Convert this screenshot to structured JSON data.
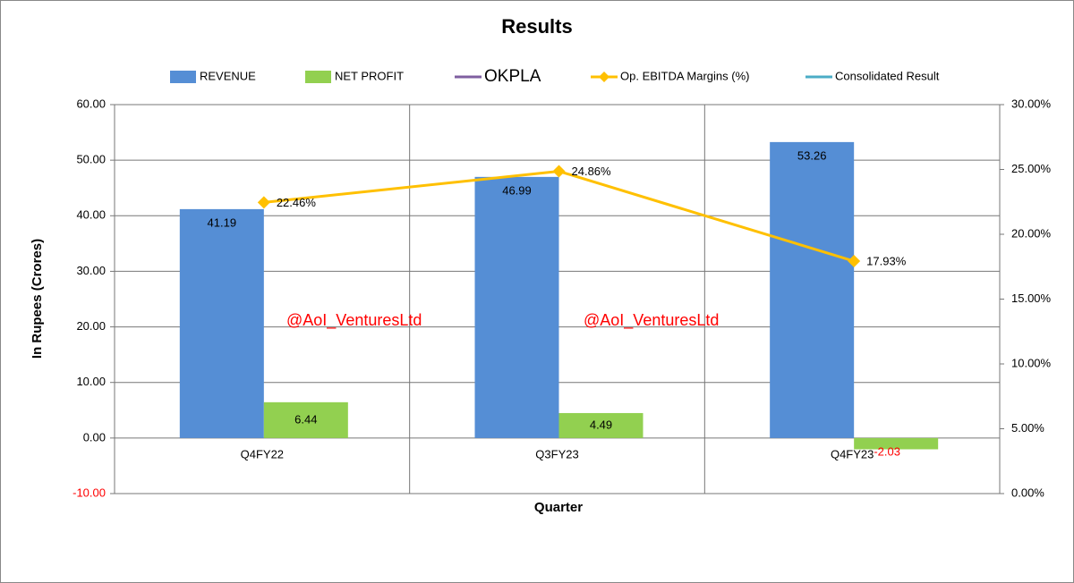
{
  "chart_data": {
    "type": "bar",
    "title": "Results",
    "categories": [
      "Q4FY22",
      "Q3FY23",
      "Q4FY23"
    ],
    "series": [
      {
        "name": "REVENUE",
        "type": "bar",
        "color": "#558ED5",
        "values": [
          41.19,
          46.99,
          53.26
        ]
      },
      {
        "name": "NET PROFIT",
        "type": "bar",
        "color": "#92D050",
        "values": [
          6.44,
          4.49,
          -2.03
        ]
      },
      {
        "name": "OKPLA",
        "type": "line",
        "color": "#7F5FA0",
        "values": [
          null,
          null,
          null
        ]
      },
      {
        "name": "Op. EBITDA Margins (%)",
        "type": "line",
        "color": "#FFC000",
        "axis": "y2",
        "marker": "diamond",
        "values": [
          22.46,
          24.86,
          17.93
        ],
        "value_labels": [
          "22.46%",
          "24.86%",
          "17.93%"
        ]
      },
      {
        "name": "Consolidated Result",
        "type": "line",
        "color": "#4BACC6",
        "values": [
          null,
          null,
          null
        ]
      }
    ],
    "ylim": [
      -10,
      60
    ],
    "yticks": [
      {
        "value": -10,
        "label": "-10.00"
      },
      {
        "value": 0,
        "label": "0.00"
      },
      {
        "value": 10,
        "label": "10.00"
      },
      {
        "value": 20,
        "label": "20.00"
      },
      {
        "value": 30,
        "label": "30.00"
      },
      {
        "value": 40,
        "label": "40.00"
      },
      {
        "value": 50,
        "label": "50.00"
      },
      {
        "value": 60,
        "label": "60.00"
      }
    ],
    "y2lim": [
      0,
      30
    ],
    "y2ticks": [
      {
        "value": 0,
        "label": "0.00%"
      },
      {
        "value": 5,
        "label": "5.00%"
      },
      {
        "value": 10,
        "label": "10.00%"
      },
      {
        "value": 15,
        "label": "15.00%"
      },
      {
        "value": 20,
        "label": "20.00%"
      },
      {
        "value": 25,
        "label": "25.00%"
      },
      {
        "value": 30,
        "label": "30.00%"
      }
    ],
    "y_label": "In Rupees (Crores)",
    "x_label": "Quarter",
    "annotations": [
      "@AoI_VenturesLtd",
      "@AoI_VenturesLtd"
    ],
    "negative_color": "#FF0000",
    "grid": true,
    "legend": "top"
  }
}
